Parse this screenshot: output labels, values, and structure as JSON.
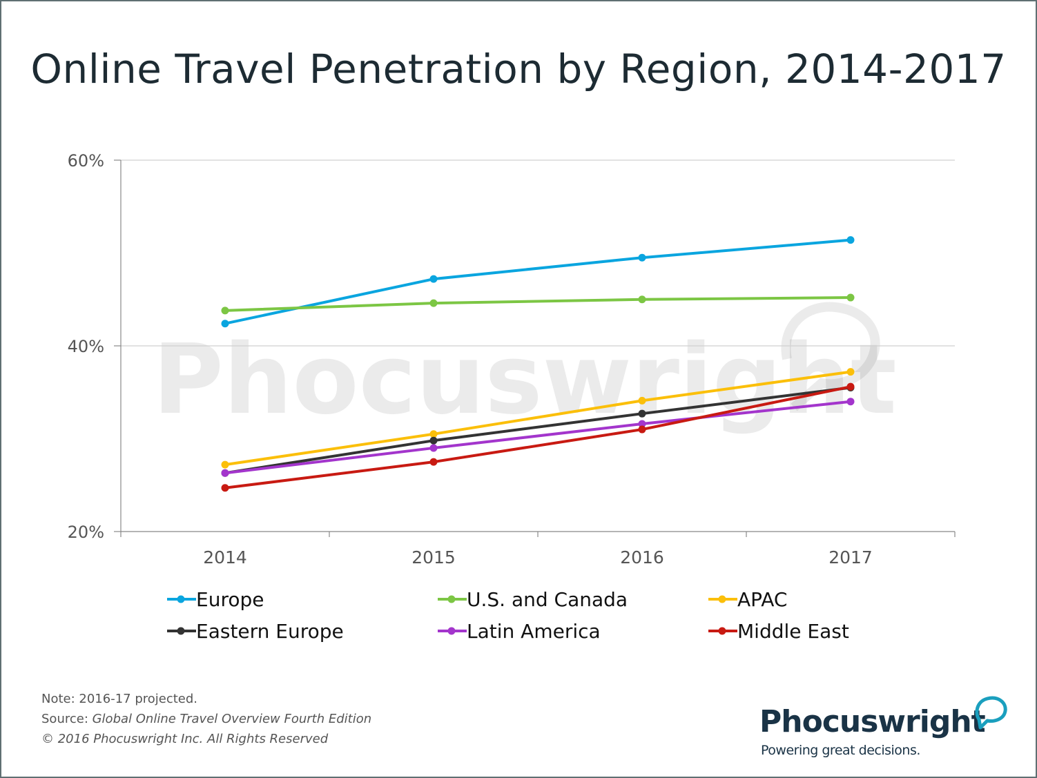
{
  "title": "Online Travel Penetration by Region, 2014-2017",
  "watermark": "Phocuswright",
  "footnotes": {
    "note": "Note: 2016-17 projected.",
    "source_prefix": "Source: ",
    "source_title": "Global Online Travel Overview Fourth Edition",
    "copyright": "© 2016 Phocuswright Inc. All Rights Reserved"
  },
  "logo": {
    "name": "Phocuswright",
    "tagline": "Powering great decisions."
  },
  "chart_data": {
    "type": "line",
    "title": "Online Travel Penetration by Region, 2014-2017",
    "xlabel": "",
    "ylabel": "",
    "categories": [
      "2014",
      "2015",
      "2016",
      "2017"
    ],
    "ylim": [
      20,
      60
    ],
    "yticks": [
      20,
      40,
      60
    ],
    "ytick_labels": [
      "20%",
      "40%",
      "60%"
    ],
    "grid": true,
    "legend_position": "bottom",
    "series": [
      {
        "name": "Europe",
        "color": "#0aa5df",
        "values": [
          42.4,
          47.2,
          49.5,
          51.4
        ]
      },
      {
        "name": "U.S. and Canada",
        "color": "#7cc644",
        "values": [
          43.8,
          44.6,
          45.0,
          45.2
        ]
      },
      {
        "name": "APAC",
        "color": "#fbbf0a",
        "values": [
          27.2,
          30.5,
          34.1,
          37.2
        ]
      },
      {
        "name": "Eastern Europe",
        "color": "#333333",
        "values": [
          26.3,
          29.8,
          32.7,
          35.5
        ]
      },
      {
        "name": "Latin America",
        "color": "#a335cc",
        "values": [
          26.3,
          29.0,
          31.6,
          34.0
        ]
      },
      {
        "name": "Middle East",
        "color": "#c81a12",
        "values": [
          24.7,
          27.5,
          31.0,
          35.6
        ]
      }
    ]
  }
}
